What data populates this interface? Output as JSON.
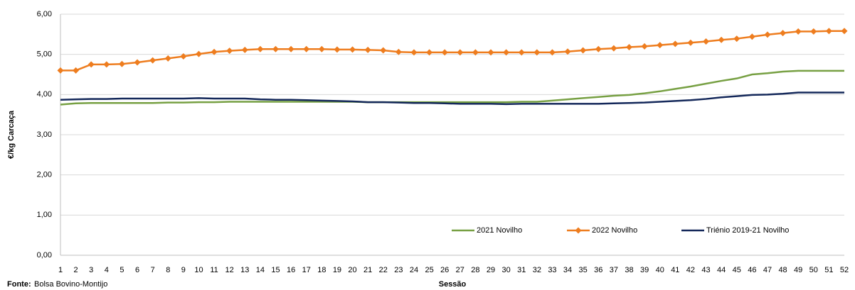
{
  "chart_data": {
    "type": "line",
    "y_label": "€/kg Carcaça",
    "x_label": "Sessão",
    "source_label": "Fonte:",
    "source": "Bolsa Bovino-Montijo",
    "x": [
      1,
      2,
      3,
      4,
      5,
      6,
      7,
      8,
      9,
      10,
      11,
      12,
      13,
      14,
      15,
      16,
      17,
      18,
      19,
      20,
      21,
      22,
      23,
      24,
      25,
      26,
      27,
      28,
      29,
      30,
      31,
      32,
      33,
      34,
      35,
      36,
      37,
      38,
      39,
      40,
      41,
      42,
      43,
      44,
      45,
      46,
      47,
      48,
      49,
      50,
      51,
      52
    ],
    "xlim": [
      1,
      52
    ],
    "ylim": [
      0,
      6
    ],
    "yticks": [
      {
        "value": 0,
        "label": "0,00"
      },
      {
        "value": 1,
        "label": "1,00"
      },
      {
        "value": 2,
        "label": "2,00"
      },
      {
        "value": 3,
        "label": "3,00"
      },
      {
        "value": 4,
        "label": "4,00"
      },
      {
        "value": 5,
        "label": "5,00"
      },
      {
        "value": 6,
        "label": "6,00"
      }
    ],
    "grid": true,
    "legend": "lower right",
    "series": [
      {
        "name": "2021 Novilho",
        "color": "#77a043",
        "marker": false,
        "values": [
          3.75,
          3.78,
          3.79,
          3.79,
          3.79,
          3.79,
          3.79,
          3.8,
          3.8,
          3.81,
          3.81,
          3.82,
          3.82,
          3.82,
          3.82,
          3.82,
          3.82,
          3.82,
          3.82,
          3.82,
          3.81,
          3.81,
          3.81,
          3.81,
          3.81,
          3.81,
          3.81,
          3.81,
          3.81,
          3.81,
          3.82,
          3.82,
          3.85,
          3.88,
          3.91,
          3.94,
          3.97,
          3.99,
          4.03,
          4.08,
          4.14,
          4.2,
          4.27,
          4.34,
          4.4,
          4.5,
          4.53,
          4.57,
          4.59,
          4.59,
          4.59,
          4.59
        ]
      },
      {
        "name": "2022 Novilho",
        "color": "#ee7d1f",
        "marker": true,
        "values": [
          4.6,
          4.6,
          4.75,
          4.75,
          4.76,
          4.8,
          4.85,
          4.9,
          4.95,
          5.01,
          5.06,
          5.09,
          5.11,
          5.13,
          5.13,
          5.13,
          5.13,
          5.13,
          5.12,
          5.12,
          5.11,
          5.1,
          5.06,
          5.05,
          5.05,
          5.05,
          5.05,
          5.05,
          5.05,
          5.05,
          5.05,
          5.05,
          5.05,
          5.07,
          5.1,
          5.13,
          5.15,
          5.18,
          5.2,
          5.23,
          5.26,
          5.29,
          5.32,
          5.36,
          5.39,
          5.44,
          5.49,
          5.53,
          5.57,
          5.57,
          5.58,
          5.58
        ]
      },
      {
        "name": "Triénio 2019-21 Novilho",
        "color": "#14285a",
        "marker": false,
        "values": [
          3.87,
          3.88,
          3.89,
          3.89,
          3.9,
          3.9,
          3.9,
          3.9,
          3.9,
          3.91,
          3.9,
          3.9,
          3.9,
          3.88,
          3.87,
          3.87,
          3.86,
          3.85,
          3.84,
          3.83,
          3.81,
          3.81,
          3.8,
          3.79,
          3.79,
          3.78,
          3.77,
          3.77,
          3.77,
          3.76,
          3.77,
          3.77,
          3.77,
          3.77,
          3.77,
          3.77,
          3.78,
          3.79,
          3.8,
          3.82,
          3.84,
          3.86,
          3.89,
          3.93,
          3.96,
          3.99,
          4.0,
          4.02,
          4.05,
          4.05,
          4.05,
          4.05
        ]
      }
    ]
  }
}
